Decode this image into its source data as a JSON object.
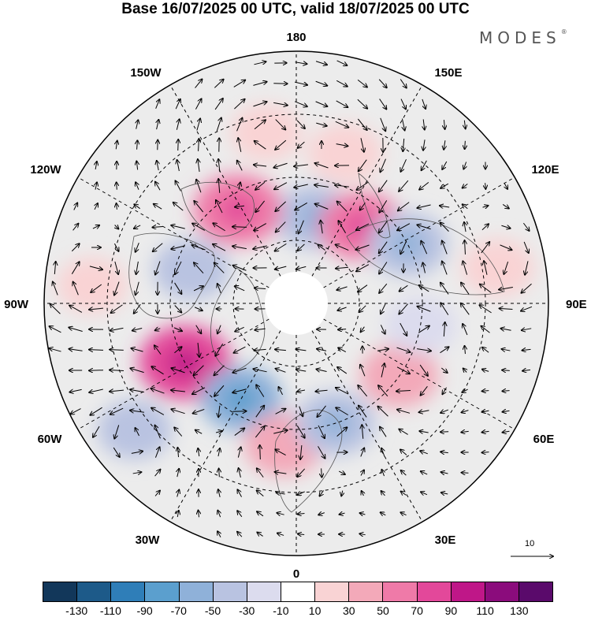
{
  "title": "Base 16/07/2025 00 UTC, valid 18/07/2025 00 UTC",
  "logo": "MODES",
  "logo_mark": "®",
  "longitude_labels": {
    "top": "180",
    "bottom": "0",
    "left": "90W",
    "right": "90E",
    "upper_left": "150W",
    "upper_right": "150E",
    "mid_upper_left": "120W",
    "mid_upper_right": "120E",
    "mid_lower_left": "60W",
    "mid_lower_right": "60E",
    "lower_left": "30W",
    "lower_right": "30E"
  },
  "reference_vector": {
    "label": "10"
  },
  "colorbar": {
    "colors": [
      "#12375a",
      "#1d5a89",
      "#2f7eb8",
      "#5b9fce",
      "#8fb1d9",
      "#b9c3e1",
      "#dcdcee",
      "#ffffff",
      "#f9d3d4",
      "#f3a9b9",
      "#ef7aa8",
      "#e3489a",
      "#bf1788",
      "#8b0c7c",
      "#5a0a6b"
    ],
    "tick_labels": [
      "-130",
      "-110",
      "-90",
      "-70",
      "-50",
      "-30",
      "-10",
      "10",
      "30",
      "50",
      "70",
      "90",
      "110",
      "130"
    ]
  },
  "anomaly_blobs": [
    {
      "lon": 168,
      "lat": 62,
      "value": -45
    },
    {
      "lon": 140,
      "lat": 58,
      "value": 55
    },
    {
      "lon": 162,
      "lat": 40,
      "value": 30
    },
    {
      "lon": 118,
      "lat": 50,
      "value": -45
    },
    {
      "lon": 100,
      "lat": 25,
      "value": 25
    },
    {
      "lon": -148,
      "lat": 55,
      "value": 65
    },
    {
      "lon": -170,
      "lat": 35,
      "value": 20
    },
    {
      "lon": -108,
      "lat": 55,
      "value": -35
    },
    {
      "lon": -95,
      "lat": 25,
      "value": 20
    },
    {
      "lon": -62,
      "lat": 50,
      "value": 75
    },
    {
      "lon": -52,
      "lat": 25,
      "value": -30
    },
    {
      "lon": -30,
      "lat": 55,
      "value": -50
    },
    {
      "lon": -5,
      "lat": 45,
      "value": 40
    },
    {
      "lon": 18,
      "lat": 50,
      "value": -45
    },
    {
      "lon": 55,
      "lat": 50,
      "value": 40
    },
    {
      "lon": 80,
      "lat": 50,
      "value": -25
    }
  ]
}
